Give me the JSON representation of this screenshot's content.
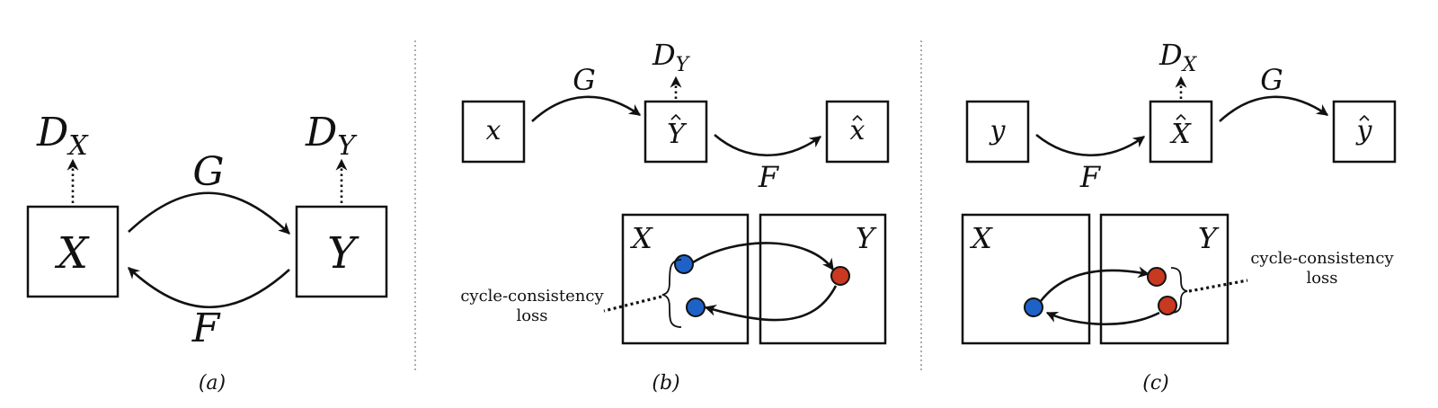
{
  "panels": {
    "a": {
      "caption": "(a)",
      "nodes": {
        "left": "X",
        "right": "Y"
      },
      "discriminators": {
        "left": {
          "base": "D",
          "sub": "X"
        },
        "right": {
          "base": "D",
          "sub": "Y"
        }
      },
      "arrows": {
        "top": "G",
        "bottom": "F"
      }
    },
    "b": {
      "caption": "(b)",
      "nodes": {
        "input": "x",
        "mid": "Y",
        "output": "x"
      },
      "discriminator": {
        "base": "D",
        "sub": "Y"
      },
      "arrows": {
        "first": "G",
        "second": "F"
      },
      "domains": {
        "left": "X",
        "right": "Y"
      },
      "loss": {
        "line1": "cycle-consistency",
        "line2": "loss"
      }
    },
    "c": {
      "caption": "(c)",
      "nodes": {
        "input": "y",
        "mid": "X",
        "output": "y"
      },
      "discriminator": {
        "base": "D",
        "sub": "X"
      },
      "arrows": {
        "first": "F",
        "second": "G"
      },
      "domains": {
        "left": "X",
        "right": "Y"
      },
      "loss": {
        "line1": "cycle-consistency",
        "line2": "loss"
      }
    }
  },
  "colors": {
    "blue": "#1f62c7",
    "red": "#c8391f",
    "ink": "#111111"
  }
}
